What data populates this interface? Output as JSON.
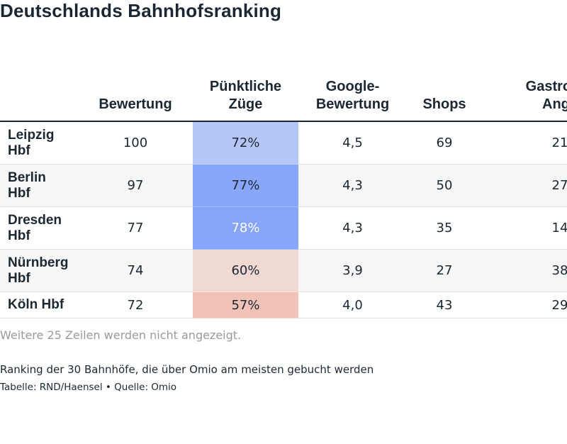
{
  "title": "Deutschlands Bahnhofsranking",
  "table": {
    "headers": [
      "",
      "Bewertung",
      "Pünktliche Züge",
      "Google-Bewertung",
      "Shops",
      "Gastronomische Angebote"
    ],
    "headers_visible": [
      "",
      "Bewertung",
      "Pünktliche|Züge",
      "Google-|Bewertung",
      "Shops",
      "Gastronor|Ange"
    ],
    "rows": [
      {
        "station": "Leipzig Hbf",
        "bewertung": "100",
        "puenktlich": "72%",
        "google": "4,5",
        "shops": "69",
        "gastro": "21"
      },
      {
        "station": "Berlin Hbf",
        "bewertung": "97",
        "puenktlich": "77%",
        "google": "4,3",
        "shops": "50",
        "gastro": "27"
      },
      {
        "station": "Dresden Hbf",
        "bewertung": "77",
        "puenktlich": "78%",
        "google": "4,3",
        "shops": "35",
        "gastro": "14"
      },
      {
        "station": "Nürnberg Hbf",
        "bewertung": "74",
        "puenktlich": "60%",
        "google": "3,9",
        "shops": "27",
        "gastro": "38"
      },
      {
        "station": "Köln Hbf",
        "bewertung": "72",
        "puenktlich": "57%",
        "google": "4,0",
        "shops": "43",
        "gastro": "29"
      }
    ],
    "heat_colors": [
      "#b4c6f8",
      "#88a7fa",
      "#86a5fb",
      "#f0d9d3",
      "#f0c3b6"
    ],
    "heat_text_colors": [
      "#1b2733",
      "#1b2733",
      "#ffffff",
      "#1b2733",
      "#1b2733"
    ]
  },
  "more_rows_note": "Weitere 25 Zeilen werden nicht angezeigt.",
  "description": "Ranking der 30 Bahnhöfe, die über Omio am meisten gebucht werden",
  "credit": "Tabelle: RND/Haensel • Quelle: Omio",
  "chart_data": {
    "type": "table",
    "title": "Deutschlands Bahnhofsranking",
    "columns": [
      "",
      "Bewertung",
      "Pünktliche Züge",
      "Google-Bewertung",
      "Shops",
      "Gastronomische Angebote"
    ],
    "rows": [
      [
        "Leipzig Hbf",
        100,
        "72%",
        "4,5",
        69,
        21
      ],
      [
        "Berlin Hbf",
        97,
        "77%",
        "4,3",
        50,
        27
      ],
      [
        "Dresden Hbf",
        77,
        "78%",
        "4,3",
        35,
        14
      ],
      [
        "Nürnberg Hbf",
        74,
        "60%",
        "3,9",
        27,
        38
      ],
      [
        "Köln Hbf",
        72,
        "57%",
        "4,0",
        43,
        29
      ]
    ],
    "heatmap_column": "Pünktliche Züge"
  }
}
